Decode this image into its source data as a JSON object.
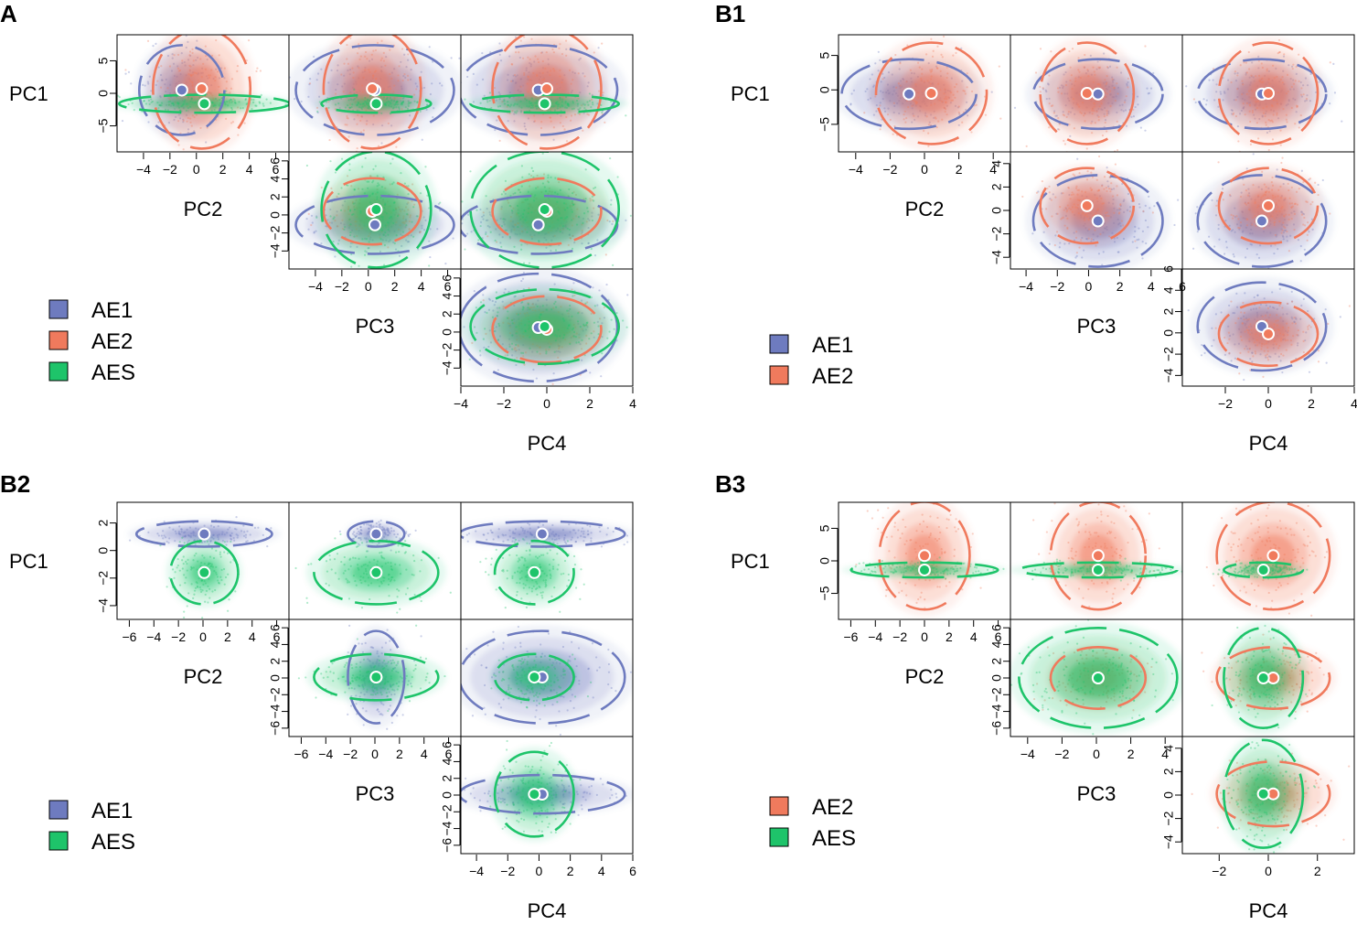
{
  "figure": {
    "type": "scatter",
    "description_axes": [
      "PC1",
      "PC2",
      "PC3",
      "PC4"
    ],
    "colors": {
      "AE1": "#6e7bbf",
      "AE2": "#f07a5d",
      "AES": "#1ec46a"
    },
    "chart_data": [
      {
        "panel": "A",
        "type": "scatter",
        "groups": [
          "AE1",
          "AE2",
          "AES"
        ],
        "legend": [
          "AE1",
          "AE2",
          "AES"
        ],
        "axis_labels": [
          "PC1",
          "PC2",
          "PC3",
          "PC4"
        ],
        "ranges": {
          "PC1": [
            -9,
            9
          ],
          "PC2": [
            -6,
            7
          ],
          "PC3": [
            -6,
            7
          ],
          "PC4": [
            -4,
            4
          ]
        },
        "ticks": {
          "PC1": [
            -5,
            0,
            5
          ],
          "PC2": [
            -4,
            -2,
            0,
            2,
            4,
            6
          ],
          "PC3": [
            -4,
            -2,
            0,
            2,
            4,
            6
          ],
          "PC4": [
            -4,
            -2,
            0,
            2,
            4
          ]
        },
        "centroids": {
          "AE1": {
            "PC1": 0.5,
            "PC2": -1.1,
            "PC3": 0.5,
            "PC4": -0.4
          },
          "AE2": {
            "PC1": 0.7,
            "PC2": 0.4,
            "PC3": 0.3,
            "PC4": 0.0
          },
          "AES": {
            "PC1": -1.6,
            "PC2": 0.6,
            "PC3": 0.6,
            "PC4": -0.1
          }
        },
        "spread": {
          "AE1": {
            "PC1": 3.0,
            "PC2": 1.4,
            "PC3": 2.6,
            "PC4": 1.6
          },
          "AE2": {
            "PC1": 4.0,
            "PC2": 1.6,
            "PC3": 1.6,
            "PC4": 1.1
          },
          "AES": {
            "PC1": 0.6,
            "PC2": 2.8,
            "PC3": 1.8,
            "PC4": 1.5
          }
        }
      },
      {
        "panel": "B1",
        "type": "scatter",
        "groups": [
          "AE1",
          "AE2"
        ],
        "legend": [
          "AE1",
          "AE2"
        ],
        "axis_labels": [
          "PC1",
          "PC2",
          "PC3",
          "PC4"
        ],
        "ranges": {
          "PC1": [
            -9,
            8
          ],
          "PC2": [
            -5,
            5
          ],
          "PC3": [
            -5,
            6
          ],
          "PC4": [
            -4,
            4
          ]
        },
        "ticks": {
          "PC1": [
            -5,
            0,
            5
          ],
          "PC2": [
            -4,
            -2,
            0,
            2,
            4
          ],
          "PC3": [
            -4,
            -2,
            0,
            2,
            4,
            6
          ],
          "PC4": [
            -2,
            0,
            2,
            4
          ]
        },
        "centroids": {
          "AE1": {
            "PC1": -0.6,
            "PC2": -0.9,
            "PC3": 0.6,
            "PC4": -0.3
          },
          "AE2": {
            "PC1": -0.5,
            "PC2": 0.4,
            "PC3": -0.1,
            "PC4": 0.0
          }
        },
        "spread": {
          "AE1": {
            "PC1": 2.2,
            "PC2": 1.7,
            "PC3": 1.8,
            "PC4": 1.3
          },
          "AE2": {
            "PC1": 3.2,
            "PC2": 1.4,
            "PC3": 1.3,
            "PC4": 1.0
          }
        }
      },
      {
        "panel": "B2",
        "type": "scatter",
        "groups": [
          "AE1",
          "AES"
        ],
        "legend": [
          "AE1",
          "AES"
        ],
        "axis_labels": [
          "PC1",
          "PC2",
          "PC3",
          "PC4"
        ],
        "ranges": {
          "PC1": [
            -5,
            3.5
          ],
          "PC2": [
            -7,
            7
          ],
          "PC3": [
            -7,
            7
          ],
          "PC4": [
            -5,
            6
          ]
        },
        "ticks": {
          "PC1": [
            -4,
            -2,
            0,
            2
          ],
          "PC2": [
            -6,
            -4,
            -2,
            0,
            2,
            4,
            6
          ],
          "PC3": [
            -6,
            -4,
            -2,
            0,
            2,
            4,
            6
          ],
          "PC4": [
            -4,
            -2,
            0,
            2,
            4,
            6
          ]
        },
        "centroids": {
          "AE1": {
            "PC1": 1.2,
            "PC2": 0.1,
            "PC3": 0.1,
            "PC4": 0.2
          },
          "AES": {
            "PC1": -1.6,
            "PC2": 0.1,
            "PC3": 0.1,
            "PC4": -0.3
          }
        },
        "spread": {
          "AE1": {
            "PC1": 0.4,
            "PC2": 2.4,
            "PC3": 1.0,
            "PC4": 2.3
          },
          "AES": {
            "PC1": 1.0,
            "PC2": 1.2,
            "PC3": 2.2,
            "PC4": 1.1
          }
        }
      },
      {
        "panel": "B3",
        "type": "scatter",
        "groups": [
          "AE2",
          "AES"
        ],
        "legend": [
          "AE2",
          "AES"
        ],
        "axis_labels": [
          "PC1",
          "PC2",
          "PC3",
          "PC4"
        ],
        "ranges": {
          "PC1": [
            -9,
            9
          ],
          "PC2": [
            -7,
            7
          ],
          "PC3": [
            -5,
            5
          ],
          "PC4": [
            -3.5,
            3.5
          ]
        },
        "ticks": {
          "PC1": [
            -5,
            0,
            5
          ],
          "PC2": [
            -6,
            -4,
            -2,
            0,
            2,
            4,
            6
          ],
          "PC3": [
            -4,
            -2,
            0,
            2,
            4
          ],
          "PC4": [
            -2,
            0,
            2
          ]
        },
        "centroids": {
          "AE2": {
            "PC1": 0.8,
            "PC2": 0.0,
            "PC3": 0.1,
            "PC4": 0.2
          },
          "AES": {
            "PC1": -1.4,
            "PC2": 0.0,
            "PC3": 0.1,
            "PC4": -0.2
          }
        },
        "spread": {
          "AE2": {
            "PC1": 3.6,
            "PC2": 1.6,
            "PC3": 1.2,
            "PC4": 1.0
          },
          "AES": {
            "PC1": 0.5,
            "PC2": 2.6,
            "PC3": 2.0,
            "PC4": 0.7
          }
        }
      }
    ]
  }
}
